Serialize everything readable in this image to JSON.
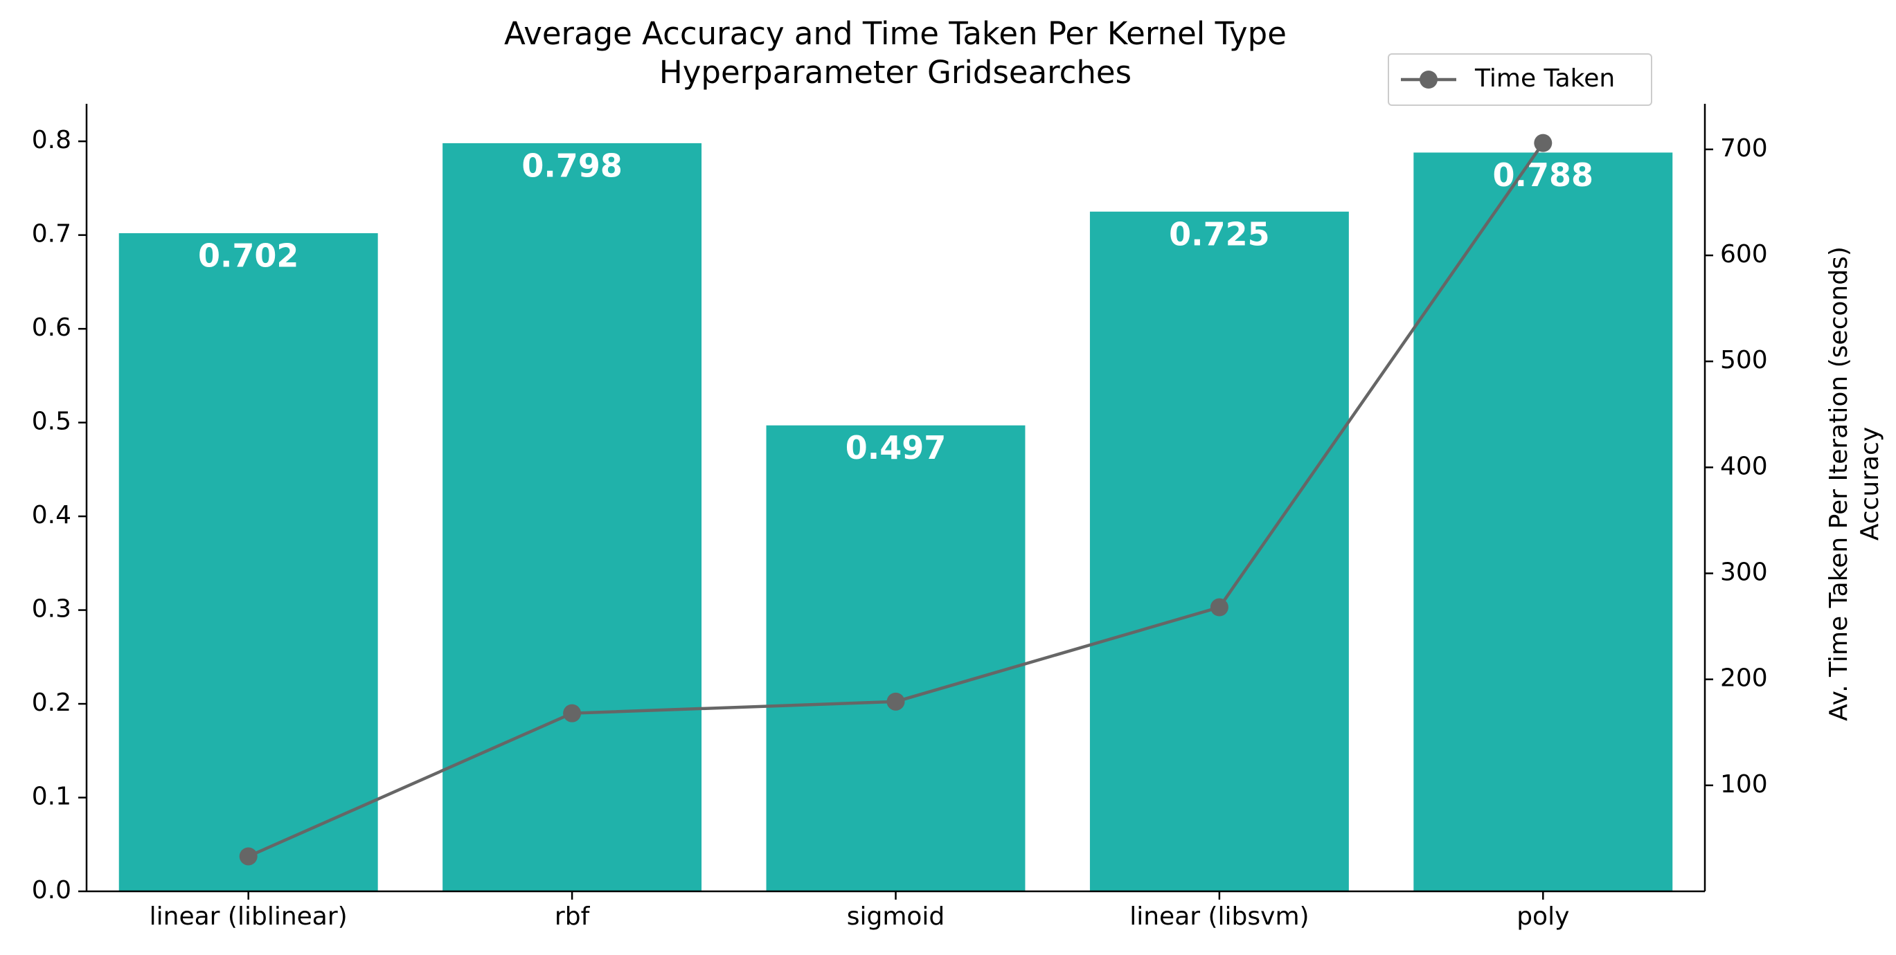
{
  "chart_data": {
    "type": "bar",
    "title": "Average Accuracy and Time Taken Per Kernel Type\nHyperparameter Gridsearches",
    "categories": [
      "linear (liblinear)",
      "rbf",
      "sigmoid",
      "linear (libsvm)",
      "poly"
    ],
    "series": [
      {
        "type": "bar",
        "axis": "left",
        "values": [
          0.702,
          0.798,
          0.497,
          0.725,
          0.788
        ],
        "labels": [
          "0.702",
          "0.798",
          "0.497",
          "0.725",
          "0.788"
        ],
        "color": "#20b2aa"
      },
      {
        "type": "line",
        "axis": "right",
        "name": "Time Taken",
        "values": [
          33,
          168,
          179,
          268,
          706
        ],
        "color": "#666666",
        "marker": "circle"
      }
    ],
    "y_left": {
      "ylim": [
        0,
        0.84
      ],
      "ticks": [
        0.0,
        0.1,
        0.2,
        0.3,
        0.4,
        0.5,
        0.6,
        0.7,
        0.8
      ],
      "tick_labels": [
        "0.0",
        "0.1",
        "0.2",
        "0.3",
        "0.4",
        "0.5",
        "0.6",
        "0.7",
        "0.8"
      ]
    },
    "y_right": {
      "label_line1": "Av. Time Taken Per Iteration (seconds)",
      "label_line2": "Accuracy",
      "ylim": [
        0,
        743
      ],
      "ticks": [
        100,
        200,
        300,
        400,
        500,
        600,
        700
      ],
      "tick_labels": [
        "100",
        "200",
        "300",
        "400",
        "500",
        "600",
        "700"
      ]
    },
    "legend": {
      "position": "top-right",
      "entries": [
        "Time Taken"
      ]
    },
    "grid": false
  }
}
